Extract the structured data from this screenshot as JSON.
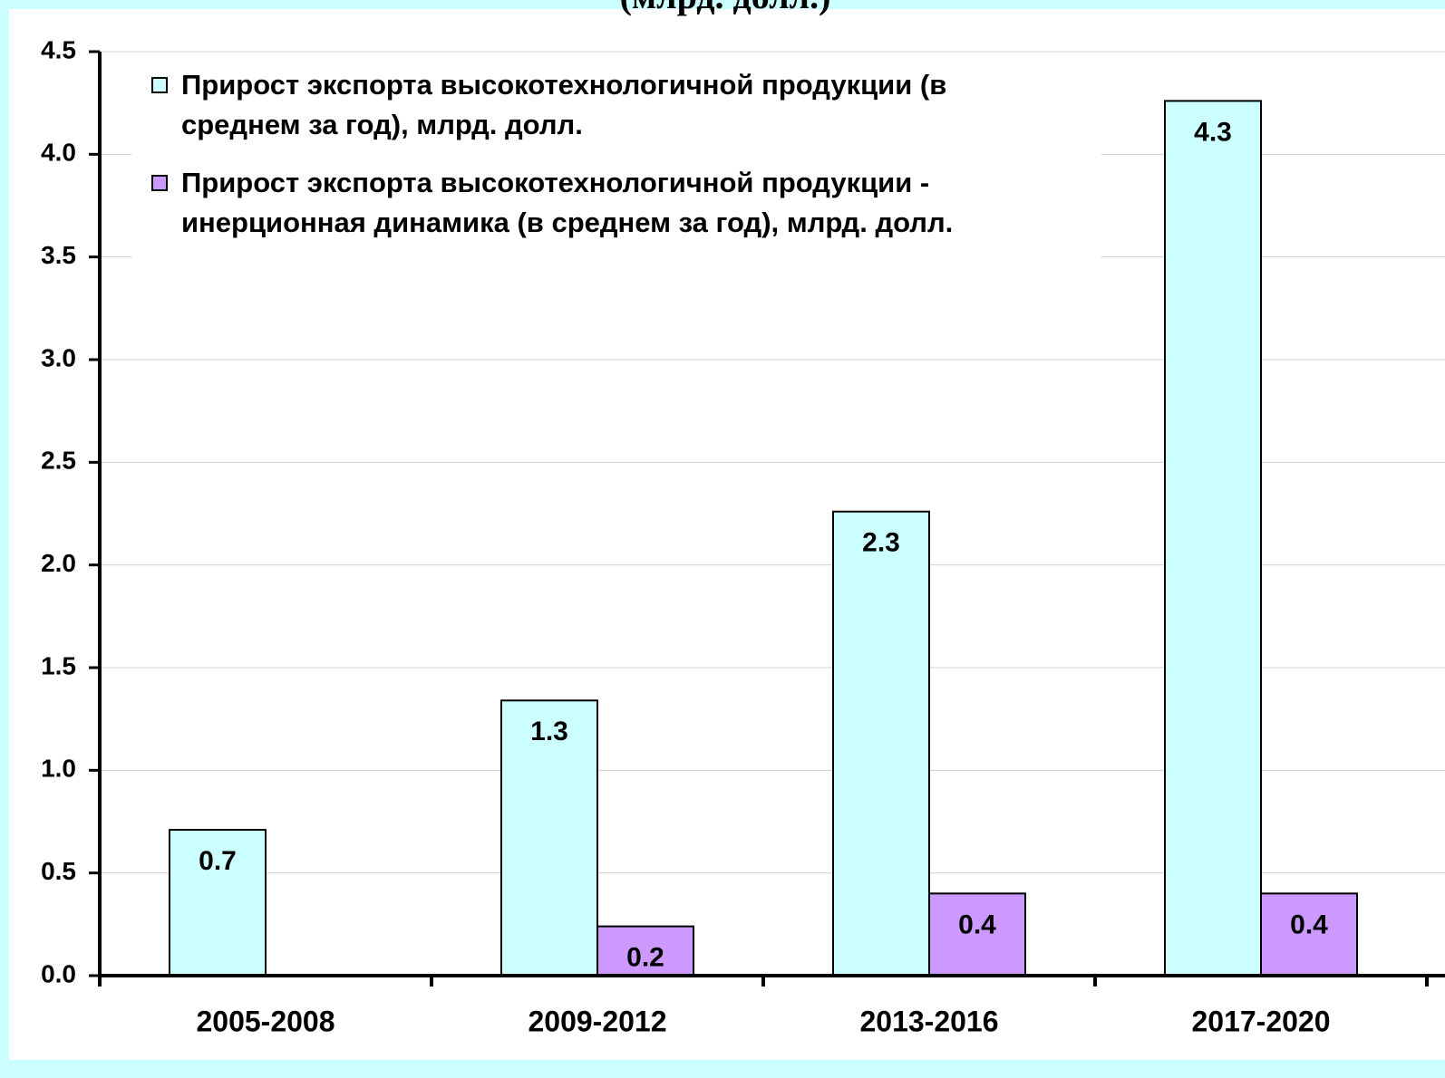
{
  "chart_data": {
    "type": "bar",
    "title": "(млрд. долл.)",
    "categories": [
      "2005-2008",
      "2009-2012",
      "2013-2016",
      "2017-2020"
    ],
    "series": [
      {
        "name": "Прирост экспорта высокотехнологичной продукции (в среднем за год), млрд. долл.",
        "color": "#ccffff",
        "values": [
          0.71,
          1.34,
          2.26,
          4.26
        ],
        "value_labels": [
          "0.7",
          "1.3",
          "2.3",
          "4.3"
        ]
      },
      {
        "name": "Прирост экспорта высокотехнологичной продукции - инерционная динамика (в среднем за год), млрд. долл.",
        "color": "#cc99ff",
        "values": [
          null,
          0.24,
          0.4,
          0.4
        ],
        "value_labels": [
          null,
          "0.2",
          "0.4",
          "0.4"
        ]
      }
    ],
    "ylim": [
      0,
      4.5
    ],
    "yticks": [
      {
        "value": 0,
        "label": "0.0"
      },
      0.5,
      {
        "value": 1,
        "label": "1.0"
      },
      1.5,
      {
        "value": 2,
        "label": "2.0"
      },
      2.5,
      {
        "value": 3,
        "label": "3.0"
      },
      3.5,
      {
        "value": 4,
        "label": "4.0"
      },
      4.5
    ],
    "grid": true,
    "legend": "top"
  }
}
